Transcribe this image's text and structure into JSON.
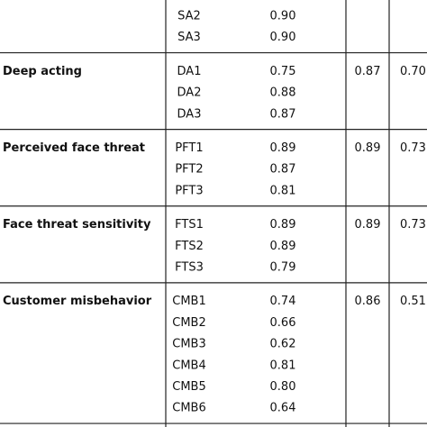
{
  "table": {
    "groups": [
      {
        "items": [
          {
            "item": "SA2",
            "loading": "0.90"
          },
          {
            "item": "SA3",
            "loading": "0.90"
          }
        ]
      },
      {
        "construct": "Deep acting",
        "items": [
          {
            "item": "DA1",
            "loading": "0.75"
          },
          {
            "item": "DA2",
            "loading": "0.88"
          },
          {
            "item": "DA3",
            "loading": "0.87"
          }
        ],
        "cr": "0.87",
        "ave": "0.70"
      },
      {
        "construct": "Perceived face threat",
        "items": [
          {
            "item": "PFT1",
            "loading": "0.89"
          },
          {
            "item": "PFT2",
            "loading": "0.87"
          },
          {
            "item": "PFT3",
            "loading": "0.81"
          }
        ],
        "cr": "0.89",
        "ave": "0.73"
      },
      {
        "construct": "Face threat sensitivity",
        "items": [
          {
            "item": "FTS1",
            "loading": "0.89"
          },
          {
            "item": "FTS2",
            "loading": "0.89"
          },
          {
            "item": "FTS3",
            "loading": "0.79"
          }
        ],
        "cr": "0.89",
        "ave": "0.73"
      },
      {
        "construct": "Customer misbehavior",
        "items": [
          {
            "item": "CMB1",
            "loading": "0.74"
          },
          {
            "item": "CMB2",
            "loading": "0.66"
          },
          {
            "item": "CMB3",
            "loading": "0.62"
          },
          {
            "item": "CMB4",
            "loading": "0.81"
          },
          {
            "item": "CMB5",
            "loading": "0.80"
          },
          {
            "item": "CMB6",
            "loading": "0.64"
          }
        ],
        "cr": "0.86",
        "ave": "0.51"
      }
    ]
  }
}
